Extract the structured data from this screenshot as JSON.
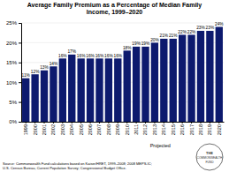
{
  "chart_data": {
    "type": "bar",
    "title": "Average Family Premium as a Percentage of Median Family\nIncome, 1999–2020",
    "categories": [
      "1999",
      "2000",
      "2001",
      "2002",
      "2003",
      "2004",
      "2005",
      "2006",
      "2007",
      "2008",
      "2009",
      "2010",
      "2011",
      "2012",
      "2013",
      "2014",
      "2015",
      "2016",
      "2017",
      "2018",
      "2019",
      "2020"
    ],
    "values": [
      11,
      12,
      13,
      14,
      16,
      17,
      16,
      16,
      16,
      16,
      16,
      18,
      19,
      19,
      20,
      21,
      21,
      22,
      22,
      23,
      23,
      24
    ],
    "value_labels": [
      "11%",
      "12%",
      "13%",
      "14%",
      "16%",
      "17%",
      "16%",
      "16%",
      "16%",
      "16%",
      "16%",
      "18%",
      "19%",
      "19%",
      "20%",
      "21%",
      "21%",
      "22%",
      "22%",
      "23%",
      "23%",
      "24%"
    ],
    "color": "#0d1a6e",
    "ylim": [
      0,
      25
    ],
    "yticks": [
      {
        "value": 0,
        "label": "0%"
      },
      {
        "value": 5,
        "label": "5%"
      },
      {
        "value": 10,
        "label": "10%"
      },
      {
        "value": 15,
        "label": "15%"
      },
      {
        "value": 20,
        "label": "20%"
      },
      {
        "value": 25,
        "label": "25%"
      }
    ],
    "grid": true,
    "data_labels": true,
    "annotations": [
      "Projected",
      "Source: Commonwealth Fund calculations based on Kaiser/HRET, 1999–2008; 2008 MEPS-IC;\nU.S. Census Bureau, Current Population Survey; Congressional Budget Office.",
      "THE",
      "COMMONWEALTH",
      "FUND"
    ]
  }
}
